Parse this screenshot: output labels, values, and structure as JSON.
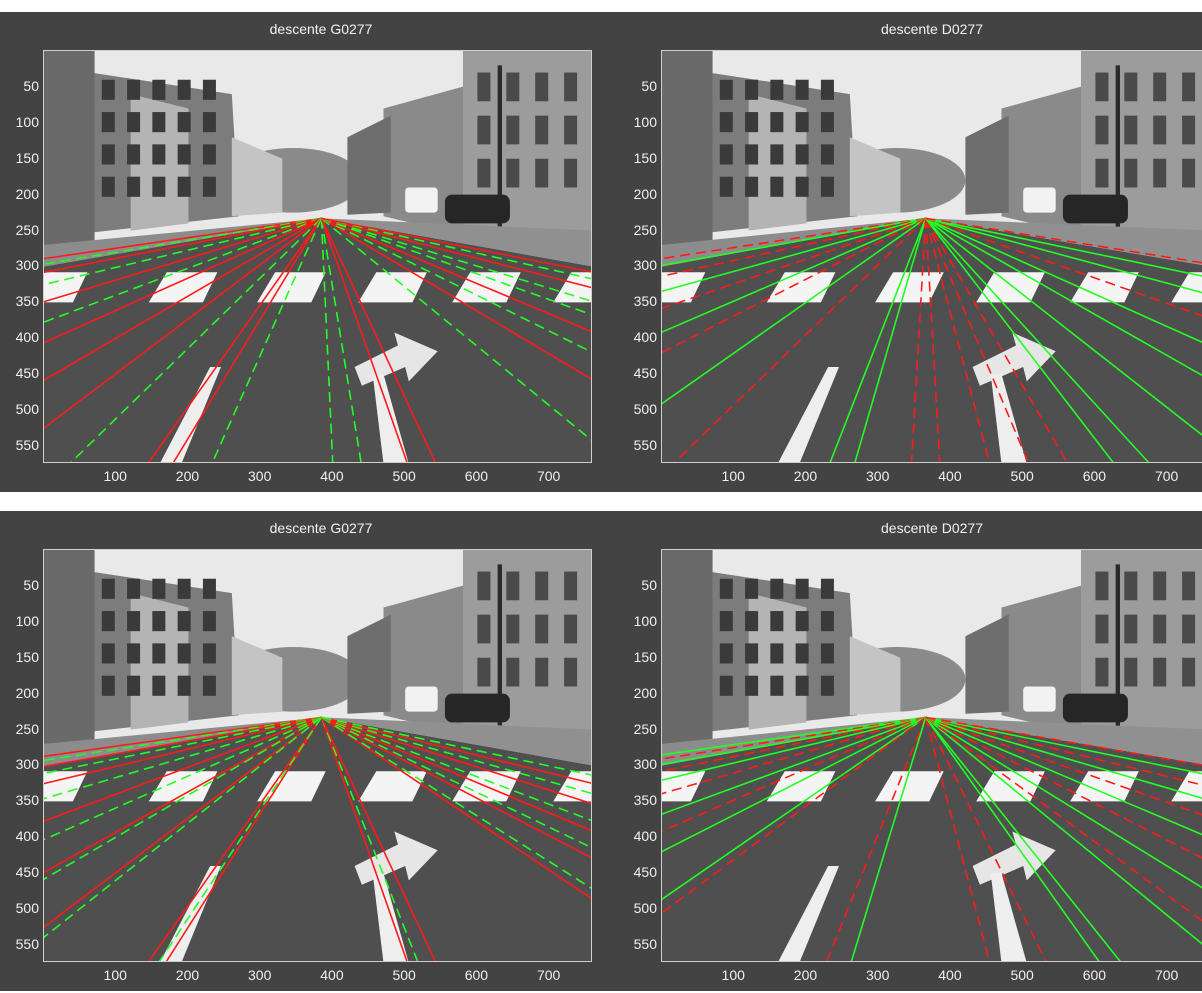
{
  "figures": [
    {
      "name": "top",
      "panels": [
        {
          "side": "left",
          "title": "descente G0277",
          "vp": [
            384,
            233
          ],
          "lines": [
            {
              "x": -20,
              "y": 292,
              "c": "r",
              "d": 0
            },
            {
              "x": -20,
              "y": 300,
              "c": "g",
              "d": 1
            },
            {
              "x": -20,
              "y": 312,
              "c": "r",
              "d": 0
            },
            {
              "x": -20,
              "y": 330,
              "c": "g",
              "d": 1
            },
            {
              "x": -20,
              "y": 355,
              "c": "r",
              "d": 0
            },
            {
              "x": -20,
              "y": 385,
              "c": "g",
              "d": 1
            },
            {
              "x": -20,
              "y": 415,
              "c": "r",
              "d": 0
            },
            {
              "x": -20,
              "y": 470,
              "c": "r",
              "d": 0
            },
            {
              "x": -20,
              "y": 540,
              "c": "r",
              "d": 0
            },
            {
              "x": 30,
              "y": 580,
              "c": "g",
              "d": 1
            },
            {
              "x": 140,
              "y": 580,
              "c": "r",
              "d": 0
            },
            {
              "x": 175,
              "y": 580,
              "c": "r",
              "d": 0
            },
            {
              "x": 230,
              "y": 580,
              "c": "g",
              "d": 1
            },
            {
              "x": 400,
              "y": 580,
              "c": "g",
              "d": 1
            },
            {
              "x": 440,
              "y": 580,
              "c": "g",
              "d": 1
            },
            {
              "x": 505,
              "y": 580,
              "c": "r",
              "d": 0
            },
            {
              "x": 545,
              "y": 580,
              "c": "r",
              "d": 0
            },
            {
              "x": 780,
              "y": 560,
              "c": "g",
              "d": 1
            },
            {
              "x": 780,
              "y": 470,
              "c": "r",
              "d": 0
            },
            {
              "x": 780,
              "y": 430,
              "c": "g",
              "d": 1
            },
            {
              "x": 780,
              "y": 400,
              "c": "r",
              "d": 0
            },
            {
              "x": 780,
              "y": 375,
              "c": "g",
              "d": 1
            },
            {
              "x": 780,
              "y": 355,
              "c": "g",
              "d": 1
            },
            {
              "x": 780,
              "y": 335,
              "c": "r",
              "d": 0
            },
            {
              "x": 780,
              "y": 322,
              "c": "g",
              "d": 1
            },
            {
              "x": 780,
              "y": 312,
              "c": "r",
              "d": 0
            }
          ]
        },
        {
          "side": "right",
          "title": "descente D0277",
          "vp": [
            365,
            233
          ],
          "lines": [
            {
              "x": -20,
              "y": 292,
              "c": "r",
              "d": 1
            },
            {
              "x": -20,
              "y": 302,
              "c": "g",
              "d": 0
            },
            {
              "x": -20,
              "y": 318,
              "c": "r",
              "d": 1
            },
            {
              "x": -20,
              "y": 340,
              "c": "g",
              "d": 0
            },
            {
              "x": -20,
              "y": 365,
              "c": "r",
              "d": 1
            },
            {
              "x": -20,
              "y": 400,
              "c": "g",
              "d": 0
            },
            {
              "x": -20,
              "y": 430,
              "c": "r",
              "d": 1
            },
            {
              "x": -20,
              "y": 505,
              "c": "g",
              "d": 0
            },
            {
              "x": 10,
              "y": 580,
              "c": "r",
              "d": 1
            },
            {
              "x": 230,
              "y": 580,
              "c": "g",
              "d": 0
            },
            {
              "x": 265,
              "y": 580,
              "c": "g",
              "d": 0
            },
            {
              "x": 345,
              "y": 580,
              "c": "r",
              "d": 1
            },
            {
              "x": 385,
              "y": 580,
              "c": "r",
              "d": 1
            },
            {
              "x": 455,
              "y": 580,
              "c": "r",
              "d": 1
            },
            {
              "x": 510,
              "y": 580,
              "c": "r",
              "d": 1
            },
            {
              "x": 565,
              "y": 580,
              "c": "r",
              "d": 1
            },
            {
              "x": 630,
              "y": 580,
              "c": "g",
              "d": 0
            },
            {
              "x": 680,
              "y": 580,
              "c": "g",
              "d": 0
            },
            {
              "x": 780,
              "y": 560,
              "c": "g",
              "d": 0
            },
            {
              "x": 780,
              "y": 470,
              "c": "g",
              "d": 0
            },
            {
              "x": 780,
              "y": 420,
              "c": "g",
              "d": 0
            },
            {
              "x": 780,
              "y": 380,
              "c": "r",
              "d": 1
            },
            {
              "x": 780,
              "y": 345,
              "c": "g",
              "d": 0
            },
            {
              "x": 780,
              "y": 320,
              "c": "g",
              "d": 0
            },
            {
              "x": 780,
              "y": 300,
              "c": "r",
              "d": 1
            }
          ]
        }
      ]
    },
    {
      "name": "bottom",
      "panels": [
        {
          "side": "left",
          "title": "descente G0277",
          "vp": [
            384,
            233
          ],
          "lines": [
            {
              "x": -20,
              "y": 290,
              "c": "r",
              "d": 0
            },
            {
              "x": -20,
              "y": 296,
              "c": "g",
              "d": 1
            },
            {
              "x": -20,
              "y": 305,
              "c": "r",
              "d": 0
            },
            {
              "x": -20,
              "y": 315,
              "c": "g",
              "d": 1
            },
            {
              "x": -20,
              "y": 330,
              "c": "r",
              "d": 0
            },
            {
              "x": -20,
              "y": 352,
              "c": "g",
              "d": 1
            },
            {
              "x": -20,
              "y": 385,
              "c": "r",
              "d": 0
            },
            {
              "x": -20,
              "y": 412,
              "c": "g",
              "d": 1
            },
            {
              "x": -20,
              "y": 460,
              "c": "r",
              "d": 0
            },
            {
              "x": -20,
              "y": 470,
              "c": "g",
              "d": 1
            },
            {
              "x": -20,
              "y": 540,
              "c": "r",
              "d": 0
            },
            {
              "x": -20,
              "y": 555,
              "c": "g",
              "d": 1
            },
            {
              "x": 140,
              "y": 580,
              "c": "r",
              "d": 0
            },
            {
              "x": 165,
              "y": 580,
              "c": "r",
              "d": 0
            },
            {
              "x": 155,
              "y": 580,
              "c": "g",
              "d": 1
            },
            {
              "x": 505,
              "y": 580,
              "c": "r",
              "d": 0
            },
            {
              "x": 520,
              "y": 580,
              "c": "g",
              "d": 1
            },
            {
              "x": 545,
              "y": 580,
              "c": "r",
              "d": 0
            },
            {
              "x": 780,
              "y": 500,
              "c": "r",
              "d": 0
            },
            {
              "x": 780,
              "y": 485,
              "c": "g",
              "d": 1
            },
            {
              "x": 780,
              "y": 440,
              "c": "r",
              "d": 0
            },
            {
              "x": 780,
              "y": 425,
              "c": "g",
              "d": 1
            },
            {
              "x": 780,
              "y": 400,
              "c": "r",
              "d": 0
            },
            {
              "x": 780,
              "y": 385,
              "c": "g",
              "d": 1
            },
            {
              "x": 780,
              "y": 360,
              "c": "r",
              "d": 0
            },
            {
              "x": 780,
              "y": 345,
              "c": "g",
              "d": 1
            },
            {
              "x": 780,
              "y": 330,
              "c": "r",
              "d": 0
            },
            {
              "x": 780,
              "y": 318,
              "c": "g",
              "d": 1
            }
          ]
        },
        {
          "side": "right",
          "title": "descente D0277",
          "vp": [
            365,
            233
          ],
          "lines": [
            {
              "x": -20,
              "y": 288,
              "c": "g",
              "d": 0
            },
            {
              "x": -20,
              "y": 294,
              "c": "r",
              "d": 1
            },
            {
              "x": -20,
              "y": 302,
              "c": "g",
              "d": 0
            },
            {
              "x": -20,
              "y": 312,
              "c": "r",
              "d": 1
            },
            {
              "x": -20,
              "y": 325,
              "c": "g",
              "d": 0
            },
            {
              "x": -20,
              "y": 345,
              "c": "r",
              "d": 1
            },
            {
              "x": -20,
              "y": 375,
              "c": "g",
              "d": 0
            },
            {
              "x": -20,
              "y": 400,
              "c": "r",
              "d": 1
            },
            {
              "x": -20,
              "y": 430,
              "c": "g",
              "d": 0
            },
            {
              "x": -20,
              "y": 500,
              "c": "g",
              "d": 0
            },
            {
              "x": -20,
              "y": 520,
              "c": "r",
              "d": 1
            },
            {
              "x": 225,
              "y": 580,
              "c": "r",
              "d": 1
            },
            {
              "x": 260,
              "y": 580,
              "c": "g",
              "d": 0
            },
            {
              "x": 455,
              "y": 580,
              "c": "r",
              "d": 1
            },
            {
              "x": 535,
              "y": 580,
              "c": "r",
              "d": 1
            },
            {
              "x": 610,
              "y": 580,
              "c": "g",
              "d": 0
            },
            {
              "x": 640,
              "y": 580,
              "c": "g",
              "d": 0
            },
            {
              "x": 780,
              "y": 575,
              "c": "g",
              "d": 0
            },
            {
              "x": 780,
              "y": 540,
              "c": "r",
              "d": 1
            },
            {
              "x": 780,
              "y": 490,
              "c": "g",
              "d": 0
            },
            {
              "x": 780,
              "y": 445,
              "c": "r",
              "d": 1
            },
            {
              "x": 780,
              "y": 410,
              "c": "g",
              "d": 0
            },
            {
              "x": 780,
              "y": 380,
              "c": "r",
              "d": 1
            },
            {
              "x": 780,
              "y": 355,
              "c": "g",
              "d": 0
            },
            {
              "x": 780,
              "y": 335,
              "c": "r",
              "d": 1
            },
            {
              "x": 780,
              "y": 318,
              "c": "g",
              "d": 0
            },
            {
              "x": 780,
              "y": 305,
              "c": "r",
              "d": 1
            }
          ]
        }
      ]
    }
  ],
  "axis": {
    "yticks": [
      50,
      100,
      150,
      200,
      250,
      300,
      350,
      400,
      450,
      500,
      550
    ],
    "xticks": [
      100,
      200,
      300,
      400,
      500,
      600,
      700
    ]
  },
  "colors": {
    "frame": "#434343",
    "red": "#ff1a1a",
    "green": "#22ff22",
    "sky": "#e8e8e8",
    "road": "#4a4a4a"
  }
}
